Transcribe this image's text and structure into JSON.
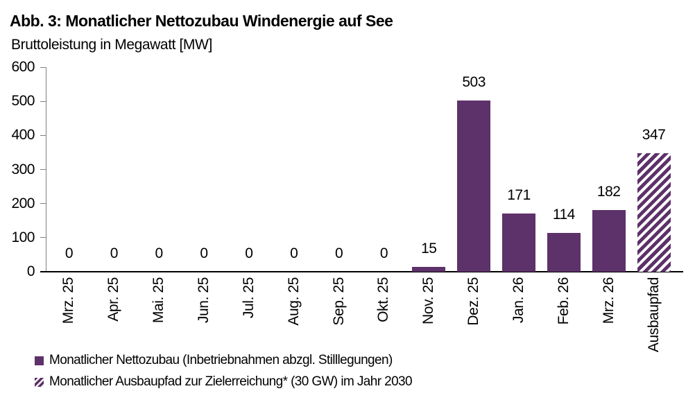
{
  "title": "Abb. 3: Monatlicher Nettozubau Windenergie auf See",
  "subtitle": "Bruttoleistung in Megawatt [MW]",
  "colors": {
    "bar_purple": "#5D3169",
    "hatch_background": "#FFFFFF",
    "value_axis_line": "#7F7F7F",
    "category_axis_line": "#000000",
    "text": "#000000"
  },
  "chart_data": {
    "type": "bar",
    "title": "Abb. 3: Monatlicher Nettozubau Windenergie auf See",
    "ylabel": "Bruttoleistung in Megawatt [MW]",
    "xlabel": "",
    "categories": [
      "Mrz. 25",
      "Apr. 25",
      "Mai. 25",
      "Jun. 25",
      "Jul. 25",
      "Aug. 25",
      "Sep. 25",
      "Okt. 25",
      "Nov. 25",
      "Dez. 25",
      "Jan. 26",
      "Feb. 26",
      "Mrz. 26",
      "Ausbaupfad"
    ],
    "series": [
      {
        "name": "Monatlicher Nettozubau (Inbetriebnahmen abzgl. Stilllegungen)",
        "style": "solid",
        "values": [
          0,
          0,
          0,
          0,
          0,
          0,
          0,
          0,
          15,
          503,
          171,
          114,
          182,
          null
        ]
      },
      {
        "name": "Monatlicher Ausbaupfad zur Zielerreichung* (30 GW) im Jahr 2030",
        "style": "hatched",
        "values": [
          null,
          null,
          null,
          null,
          null,
          null,
          null,
          null,
          null,
          null,
          null,
          null,
          null,
          347
        ]
      }
    ],
    "ylim": [
      0,
      600
    ],
    "yticks": [
      0,
      100,
      200,
      300,
      400,
      500,
      600
    ],
    "grid": false,
    "data_labels": true,
    "legend_position": "bottom-left"
  },
  "legend": [
    {
      "label": "Monatlicher Nettozubau (Inbetriebnahmen abzgl. Stilllegungen)",
      "style": "solid"
    },
    {
      "label": "Monatlicher Ausbaupfad zur Zielerreichung* (30 GW) im Jahr 2030",
      "style": "hatched"
    }
  ]
}
